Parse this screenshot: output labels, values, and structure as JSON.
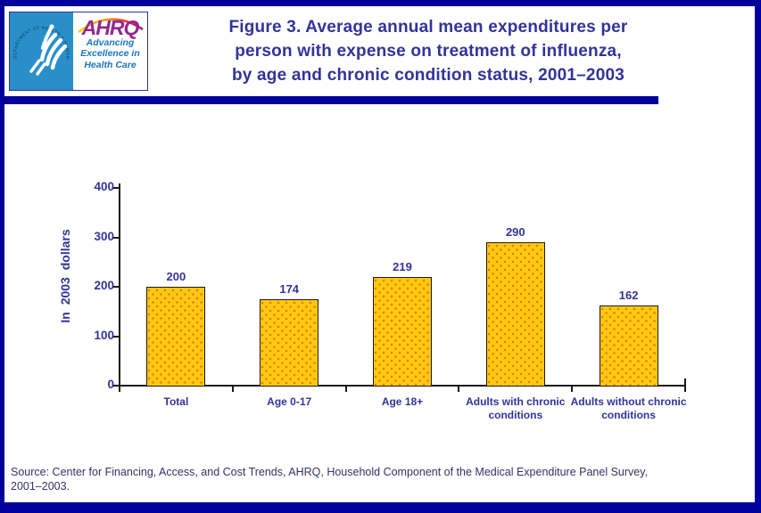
{
  "page": {
    "background": "#FFFFFF",
    "border_color": "#00009C"
  },
  "header": {
    "logo": {
      "seal_text": "DEPARTMENT OF HEALTH & HUMAN SERVICES · USA",
      "ahrq": "AHRQ",
      "tagline_lines": [
        "Advancing",
        "Excellence in",
        "Health Care"
      ],
      "hhs_blue": "#2A8FC8",
      "ahrq_purple": "#93278F",
      "tagline_blue": "#1C75BC"
    },
    "title_lines": [
      "Figure 3. Average annual mean expenditures per",
      "person with expense on treatment of influenza,",
      "by age and chronic condition status, 2001–2003"
    ],
    "title_color": "#333399",
    "divider_color": "#00009C"
  },
  "chart_data": {
    "type": "bar",
    "title": "Figure 3. Average annual mean expenditures per person with expense on treatment of influenza, by age and chronic condition status, 2001–2003",
    "categories": [
      "Total",
      "Age 0-17",
      "Age 18+",
      "Adults with chronic conditions",
      "Adults without chronic conditions"
    ],
    "values": [
      200,
      174,
      219,
      290,
      162
    ],
    "value_labels": [
      "200",
      "174",
      "219",
      "290",
      "162"
    ],
    "xlabel": "",
    "ylabel": "In 2003 dollars",
    "ylim": [
      0,
      400
    ],
    "yticks": [
      0,
      100,
      200,
      300,
      400
    ],
    "grid": false,
    "legend": "none",
    "bar_fill": "#FFC90E",
    "bar_dot": "#E8731F",
    "bar_border": "#1A1A1A",
    "axis_color": "#1A1A1A",
    "text_color": "#333399"
  },
  "source_lines": [
    "Source: Center for Financing, Access, and Cost Trends, AHRQ, Household Component of the Medical Expenditure Panel Survey,",
    "2001–2003."
  ]
}
